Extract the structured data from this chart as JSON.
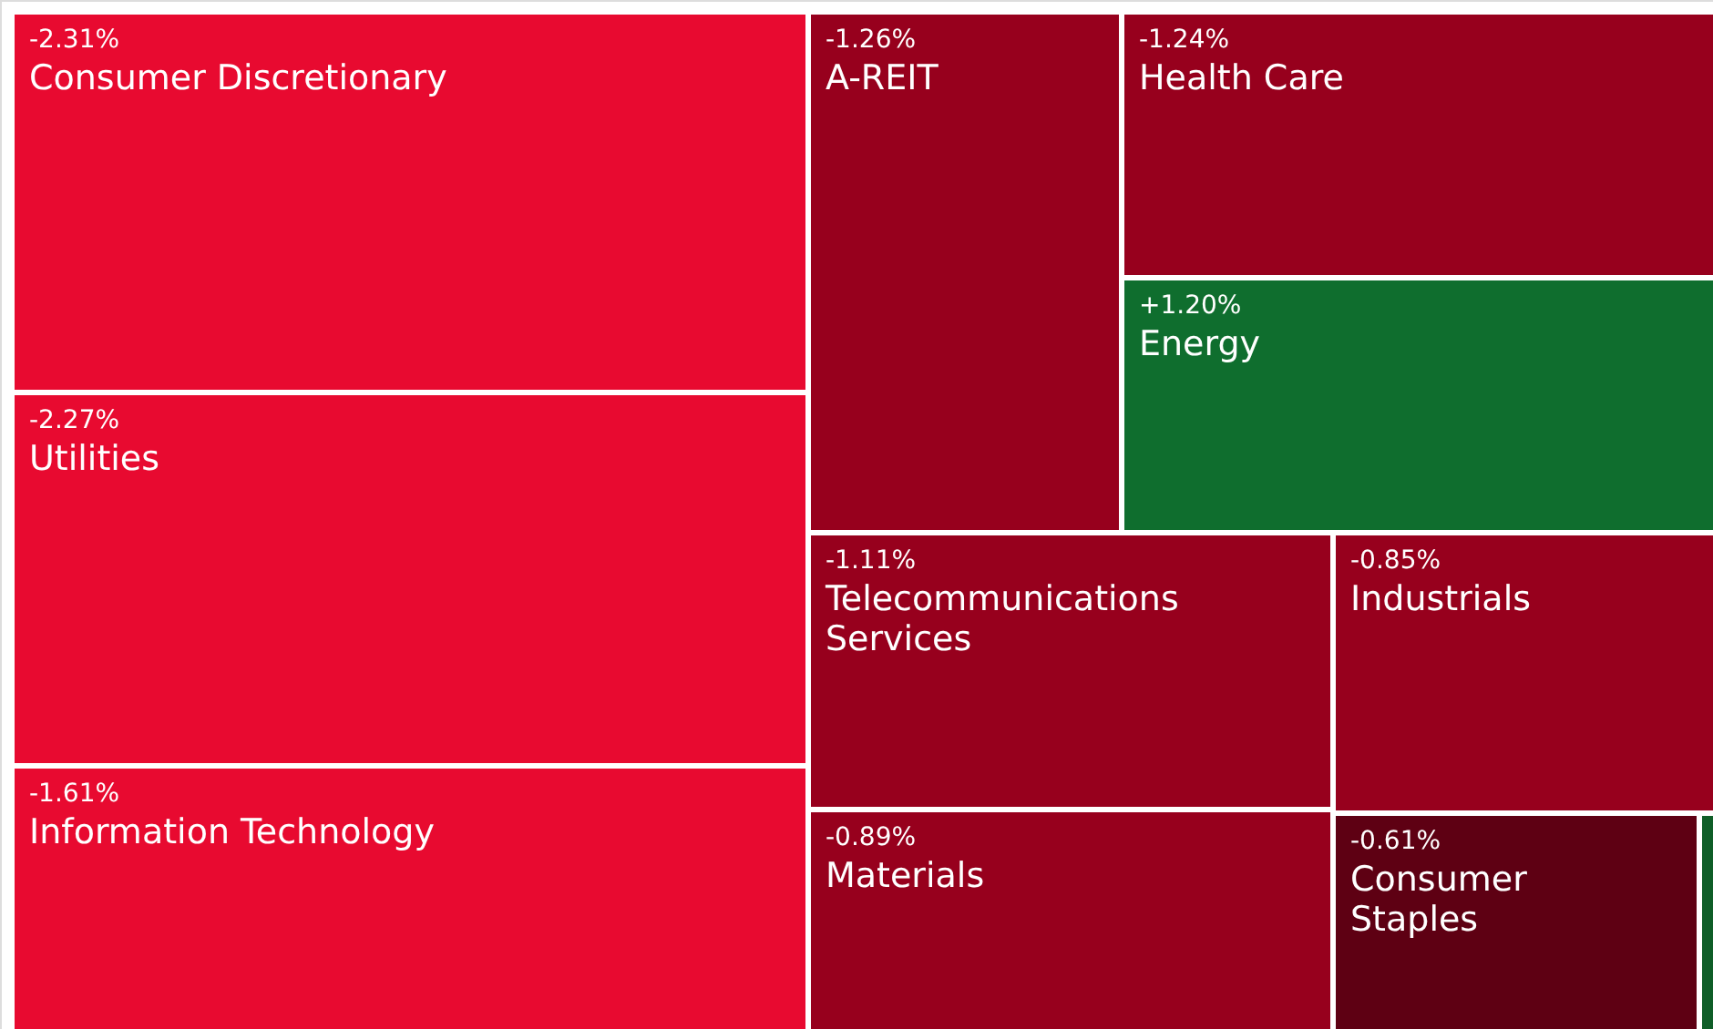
{
  "chart_data": {
    "type": "other",
    "categories": [
      "Consumer Discretionary",
      "Utilities",
      "Information Technology",
      "A-REIT",
      "Health Care",
      "Energy",
      "Telecommunications Services",
      "Industrials",
      "Materials",
      "Consumer Staples",
      null
    ],
    "values": [
      -2.31,
      -2.27,
      -1.61,
      -1.26,
      -1.24,
      1.2,
      -1.11,
      -0.85,
      -0.89,
      -0.61,
      null
    ],
    "value_labels": [
      "-2.31%",
      "-2.27%",
      "-1.61%",
      "-1.26%",
      "-1.24%",
      "+1.20%",
      "-1.11%",
      "-0.85%",
      "-0.89%",
      "-0.61%",
      null
    ],
    "colors": [
      "#e80a30",
      "#e80a30",
      "#e80a30",
      "#97001d",
      "#97001d",
      "#0f6e2e",
      "#97001d",
      "#97001d",
      "#97001d",
      "#5e0013",
      "#0f5e28"
    ]
  }
}
